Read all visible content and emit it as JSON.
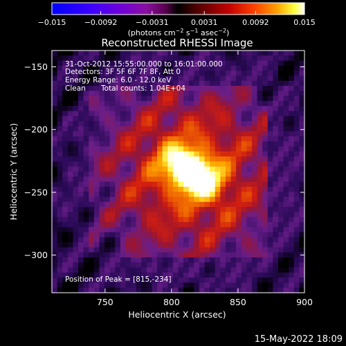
{
  "colors": {
    "background": "#000000",
    "text": "#ffffff",
    "colormap": [
      "#000000",
      "#2a0a58",
      "#6a1e8a",
      "#9a1530",
      "#d21e10",
      "#f06a00",
      "#ffb000",
      "#ffff60",
      "#ffffff"
    ],
    "colorbar_low": [
      "#0000ff",
      "#3a00ff",
      "#7000d8",
      "#8a10a0",
      "#5a0050",
      "#000000"
    ],
    "colorbar_high": [
      "#000000",
      "#500000",
      "#c00000",
      "#ff4000",
      "#ffa000",
      "#ffff40",
      "#ffffff"
    ]
  },
  "colorbar": {
    "tick_labels": [
      "−0.015",
      "−0.0092",
      "−0.0031",
      "0.0031",
      "0.0092",
      "0.015"
    ],
    "tick_values": [
      -0.015,
      -0.0092,
      -0.0031,
      0.0031,
      0.0092,
      0.015
    ],
    "range": [
      -0.015,
      0.015
    ],
    "units_prefix": "(photons cm",
    "units_exp1": "−2",
    "units_mid": " s",
    "units_exp2": "−1",
    "units_mid2": " asec",
    "units_exp3": "−2",
    "units_suffix": ")"
  },
  "chart_data": {
    "type": "heatmap",
    "title": "Reconstructed RHESSI Image",
    "xlabel": "Heliocentric X (arcsec)",
    "ylabel": "Heliocentric Y (arcsec)",
    "xlim": [
      710,
      900
    ],
    "ylim": [
      -330,
      -137
    ],
    "x_ticks": [
      750,
      800,
      850,
      900
    ],
    "x_tick_labels": [
      "750",
      "800",
      "850",
      "900"
    ],
    "y_ticks": [
      -150,
      -200,
      -250,
      -300
    ],
    "y_tick_labels": [
      "−150",
      "−200",
      "−250",
      "−300"
    ],
    "peak": [
      815,
      -234
    ],
    "annotations": [
      "31-Oct-2012 15:55:00.000 to 16:01:00.000",
      "Detectors: 3F 5F 6F 7F 8F, Att 0",
      "Energy Range: 6.0 - 12.0 keV",
      "Clean",
      "Total counts: 1.04E+04",
      "Position of Peak = [815,-234]"
    ]
  },
  "timestamp": "15-May-2022 18:09"
}
